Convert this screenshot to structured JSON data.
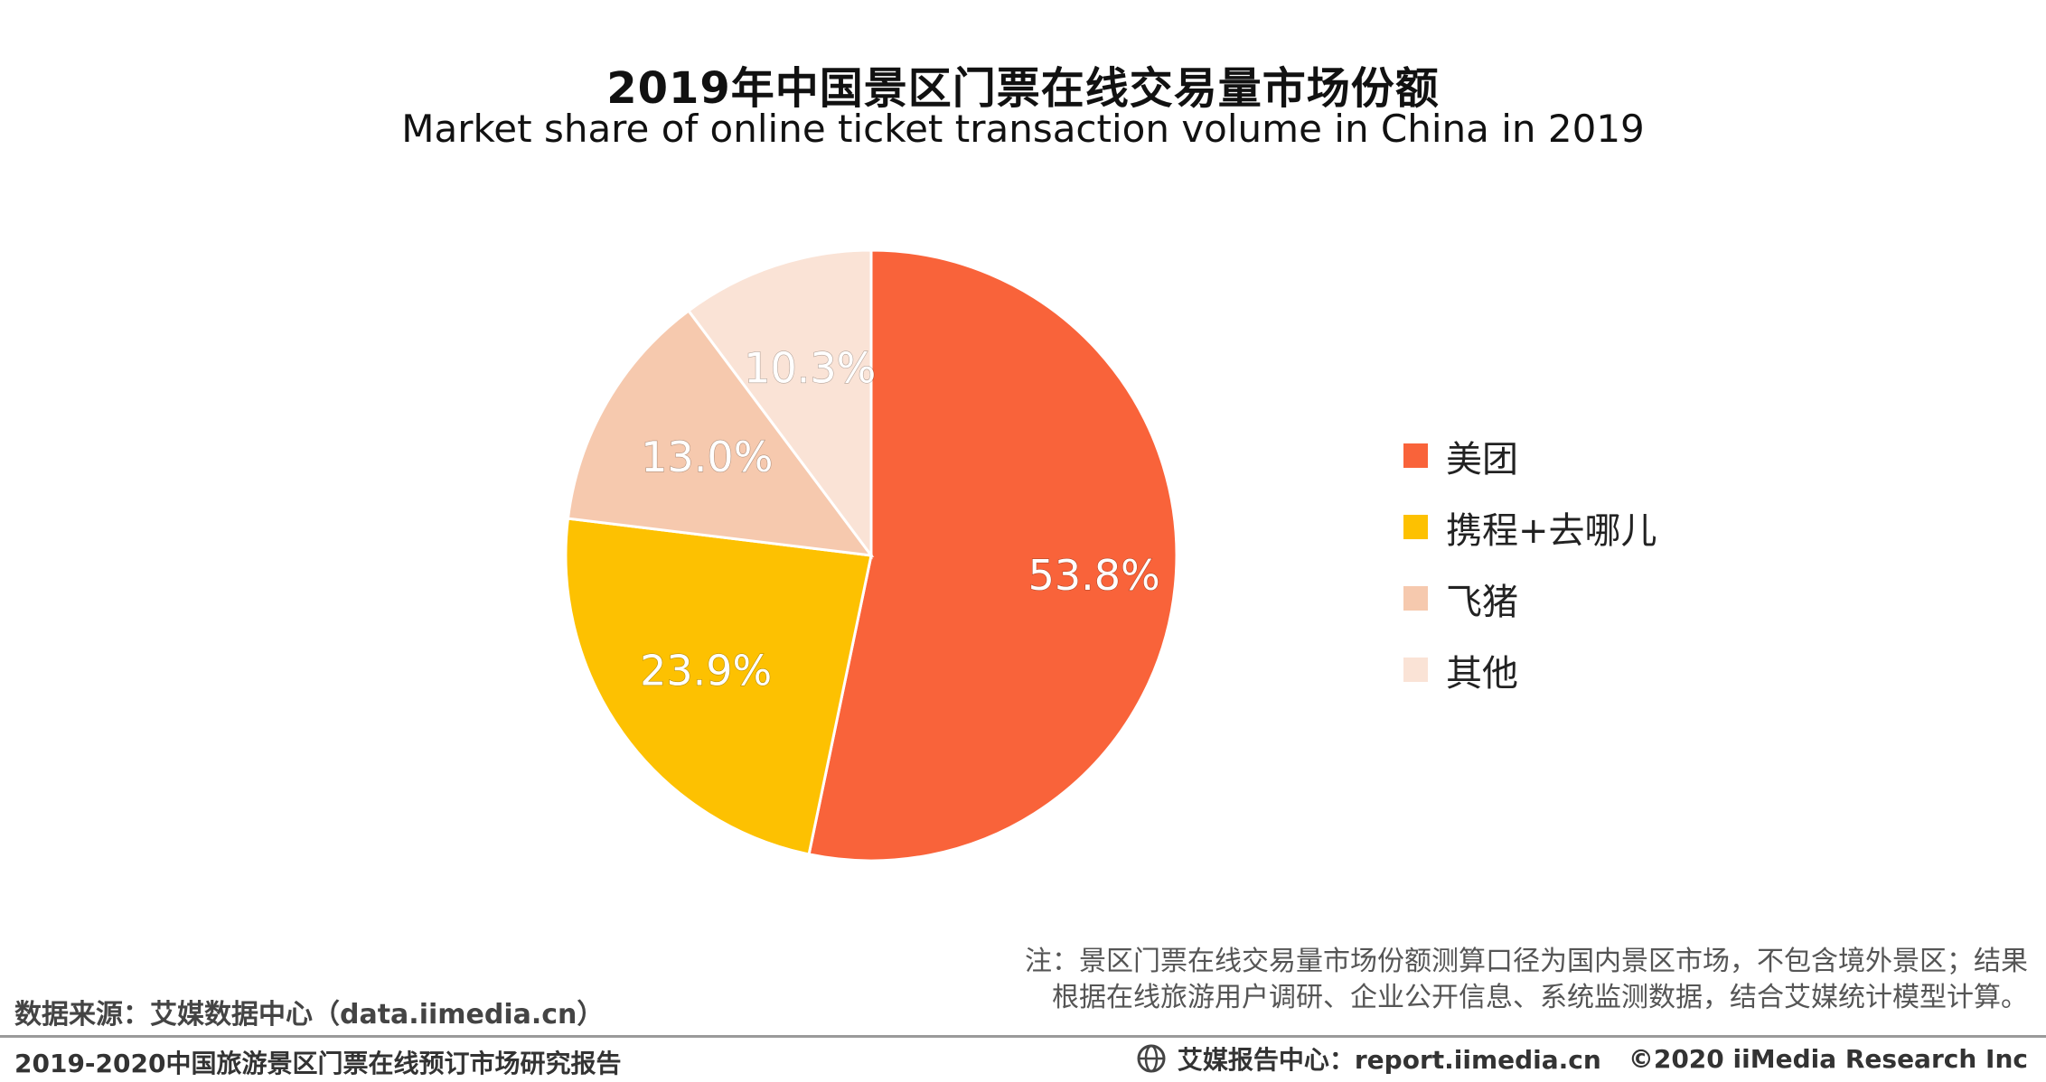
{
  "chart_data": {
    "type": "pie",
    "title": "2019年中国景区门票在线交易量市场份额",
    "subtitle": "Market share of online ticket transaction volume in China in 2019",
    "categories": [
      "美团",
      "携程+去哪儿",
      "飞猪",
      "其他"
    ],
    "values": [
      53.8,
      23.9,
      13.0,
      10.3
    ],
    "labels": [
      "53.8%",
      "23.9%",
      "13.0%",
      "10.3%"
    ],
    "colors": [
      "#F9633A",
      "#FDC101",
      "#F6C9AE",
      "#FAE3D6"
    ],
    "label_colors": [
      "#ffffff",
      "#ffffff",
      "#ffffff",
      "#ffffff"
    ],
    "legend_position": "right"
  },
  "note": {
    "line1": "注：景区门票在线交易量市场份额测算口径为国内景区市场，不包含境外景区；结果",
    "line2": "根据在线旅游用户调研、企业公开信息、系统监测数据，结合艾媒统计模型计算。"
  },
  "source": "数据来源：艾媒数据中心（data.iimedia.cn）",
  "footer": {
    "report_title": "2019-2020中国旅游景区门票在线预订市场研究报告",
    "report_center": "艾媒报告中心：report.iimedia.cn",
    "copyright": "©2020  iiMedia Research  Inc",
    "icon": "globe-icon"
  }
}
